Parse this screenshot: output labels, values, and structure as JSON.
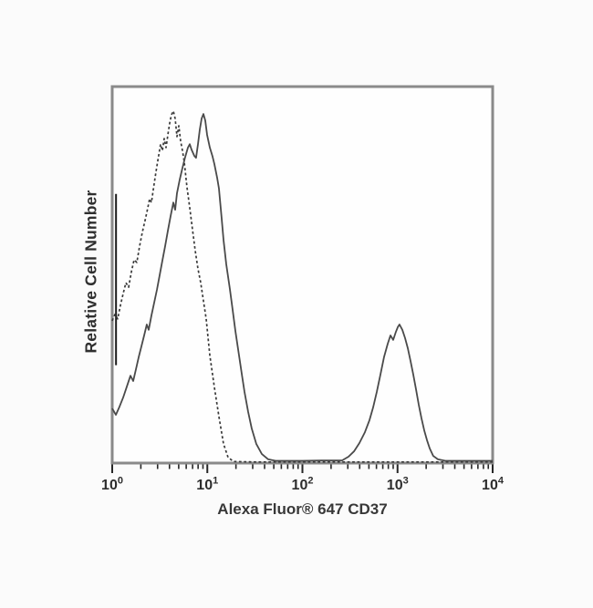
{
  "figure": {
    "background": "#fbfbfb",
    "plot_fill": "#fefefe",
    "border_color": "#8a8a8a",
    "tick_color": "#262626"
  },
  "chart_data": {
    "type": "line",
    "subtype": "flow-cytometry-histogram",
    "title": "",
    "xlabel": "Alexa Fluor® 647 CD37",
    "ylabel": "Relative Cell Number",
    "x_scale": "log10",
    "xlim_log10": [
      0,
      4
    ],
    "ylim_fraction": [
      0,
      1
    ],
    "grid": false,
    "legend": "none",
    "x_ticks": [
      {
        "base": "10",
        "exp": "0"
      },
      {
        "base": "10",
        "exp": "1"
      },
      {
        "base": "10",
        "exp": "2"
      },
      {
        "base": "10",
        "exp": "3"
      },
      {
        "base": "10",
        "exp": "4"
      }
    ],
    "series": [
      {
        "name": "dashed-control-histogram",
        "style": "dashed",
        "color": "#3a3a3a",
        "stroke_width": 1.7,
        "dash": "2.8 2.6",
        "peak_log10_x": 0.64,
        "peak_fraction": 0.94,
        "points": [
          [
            0.0,
            0.378
          ],
          [
            0.029,
            0.395
          ],
          [
            0.058,
            0.383
          ],
          [
            0.086,
            0.419
          ],
          [
            0.115,
            0.45
          ],
          [
            0.144,
            0.479
          ],
          [
            0.173,
            0.467
          ],
          [
            0.201,
            0.508
          ],
          [
            0.23,
            0.54
          ],
          [
            0.259,
            0.533
          ],
          [
            0.288,
            0.576
          ],
          [
            0.317,
            0.613
          ],
          [
            0.345,
            0.644
          ],
          [
            0.374,
            0.678
          ],
          [
            0.393,
            0.702
          ],
          [
            0.412,
            0.692
          ],
          [
            0.432,
            0.726
          ],
          [
            0.451,
            0.758
          ],
          [
            0.47,
            0.789
          ],
          [
            0.489,
            0.818
          ],
          [
            0.508,
            0.847
          ],
          [
            0.528,
            0.83
          ],
          [
            0.547,
            0.862
          ],
          [
            0.566,
            0.838
          ],
          [
            0.585,
            0.872
          ],
          [
            0.604,
            0.903
          ],
          [
            0.623,
            0.925
          ],
          [
            0.643,
            0.935
          ],
          [
            0.662,
            0.915
          ],
          [
            0.681,
            0.867
          ],
          [
            0.7,
            0.896
          ],
          [
            0.719,
            0.855
          ],
          [
            0.739,
            0.83
          ],
          [
            0.758,
            0.799
          ],
          [
            0.786,
            0.734
          ],
          [
            0.815,
            0.678
          ],
          [
            0.844,
            0.62
          ],
          [
            0.873,
            0.564
          ],
          [
            0.902,
            0.516
          ],
          [
            0.93,
            0.479
          ],
          [
            0.959,
            0.431
          ],
          [
            0.988,
            0.383
          ],
          [
            1.026,
            0.286
          ],
          [
            1.074,
            0.201
          ],
          [
            1.122,
            0.123
          ],
          [
            1.17,
            0.051
          ],
          [
            1.218,
            0.015
          ],
          [
            1.276,
            0.004
          ],
          [
            1.5,
            0.003
          ],
          [
            2.0,
            0.003
          ],
          [
            2.5,
            0.003
          ],
          [
            3.0,
            0.003
          ],
          [
            3.5,
            0.003
          ],
          [
            4.0,
            0.003
          ]
        ]
      },
      {
        "name": "solid-stained-histogram",
        "style": "solid",
        "color": "#4a4a4a",
        "stroke_width": 1.8,
        "dash": "",
        "peak1_log10_x": 0.96,
        "peak1_fraction": 0.93,
        "peak2_log10_x": 3.02,
        "peak2_fraction": 0.37,
        "points": [
          [
            0.0,
            0.145
          ],
          [
            0.038,
            0.128
          ],
          [
            0.077,
            0.15
          ],
          [
            0.115,
            0.174
          ],
          [
            0.153,
            0.203
          ],
          [
            0.192,
            0.232
          ],
          [
            0.221,
            0.218
          ],
          [
            0.249,
            0.249
          ],
          [
            0.278,
            0.281
          ],
          [
            0.307,
            0.31
          ],
          [
            0.336,
            0.339
          ],
          [
            0.364,
            0.368
          ],
          [
            0.384,
            0.354
          ],
          [
            0.412,
            0.392
          ],
          [
            0.441,
            0.426
          ],
          [
            0.47,
            0.46
          ],
          [
            0.499,
            0.499
          ],
          [
            0.528,
            0.538
          ],
          [
            0.556,
            0.576
          ],
          [
            0.585,
            0.617
          ],
          [
            0.614,
            0.656
          ],
          [
            0.643,
            0.692
          ],
          [
            0.662,
            0.673
          ],
          [
            0.681,
            0.717
          ],
          [
            0.71,
            0.753
          ],
          [
            0.739,
            0.784
          ],
          [
            0.767,
            0.813
          ],
          [
            0.796,
            0.838
          ],
          [
            0.815,
            0.847
          ],
          [
            0.834,
            0.833
          ],
          [
            0.863,
            0.816
          ],
          [
            0.882,
            0.811
          ],
          [
            0.902,
            0.847
          ],
          [
            0.921,
            0.886
          ],
          [
            0.94,
            0.915
          ],
          [
            0.959,
            0.927
          ],
          [
            0.978,
            0.91
          ],
          [
            0.998,
            0.872
          ],
          [
            1.026,
            0.838
          ],
          [
            1.055,
            0.814
          ],
          [
            1.074,
            0.794
          ],
          [
            1.103,
            0.758
          ],
          [
            1.122,
            0.729
          ],
          [
            1.151,
            0.649
          ],
          [
            1.17,
            0.593
          ],
          [
            1.199,
            0.528
          ],
          [
            1.237,
            0.462
          ],
          [
            1.266,
            0.407
          ],
          [
            1.295,
            0.351
          ],
          [
            1.333,
            0.286
          ],
          [
            1.362,
            0.237
          ],
          [
            1.391,
            0.189
          ],
          [
            1.429,
            0.136
          ],
          [
            1.467,
            0.092
          ],
          [
            1.515,
            0.051
          ],
          [
            1.573,
            0.024
          ],
          [
            1.64,
            0.01
          ],
          [
            1.717,
            0.006
          ],
          [
            2.0,
            0.006
          ],
          [
            2.2,
            0.007
          ],
          [
            2.417,
            0.007
          ],
          [
            2.484,
            0.017
          ],
          [
            2.542,
            0.031
          ],
          [
            2.599,
            0.053
          ],
          [
            2.657,
            0.082
          ],
          [
            2.705,
            0.114
          ],
          [
            2.743,
            0.148
          ],
          [
            2.782,
            0.189
          ],
          [
            2.82,
            0.235
          ],
          [
            2.858,
            0.281
          ],
          [
            2.897,
            0.317
          ],
          [
            2.926,
            0.339
          ],
          [
            2.954,
            0.327
          ],
          [
            2.983,
            0.349
          ],
          [
            3.002,
            0.361
          ],
          [
            3.021,
            0.368
          ],
          [
            3.05,
            0.354
          ],
          [
            3.079,
            0.332
          ],
          [
            3.108,
            0.305
          ],
          [
            3.137,
            0.271
          ],
          [
            3.165,
            0.235
          ],
          [
            3.194,
            0.196
          ],
          [
            3.223,
            0.155
          ],
          [
            3.252,
            0.119
          ],
          [
            3.281,
            0.087
          ],
          [
            3.309,
            0.061
          ],
          [
            3.338,
            0.039
          ],
          [
            3.376,
            0.019
          ],
          [
            3.424,
            0.01
          ],
          [
            3.501,
            0.006
          ],
          [
            3.7,
            0.006
          ],
          [
            4.0,
            0.006
          ]
        ]
      }
    ],
    "annotations": {
      "axis_edge_bar": {
        "x_log10": 0.04,
        "f_bottom": 0.26,
        "f_top": 0.715,
        "color": "#1c1c1c"
      }
    }
  }
}
